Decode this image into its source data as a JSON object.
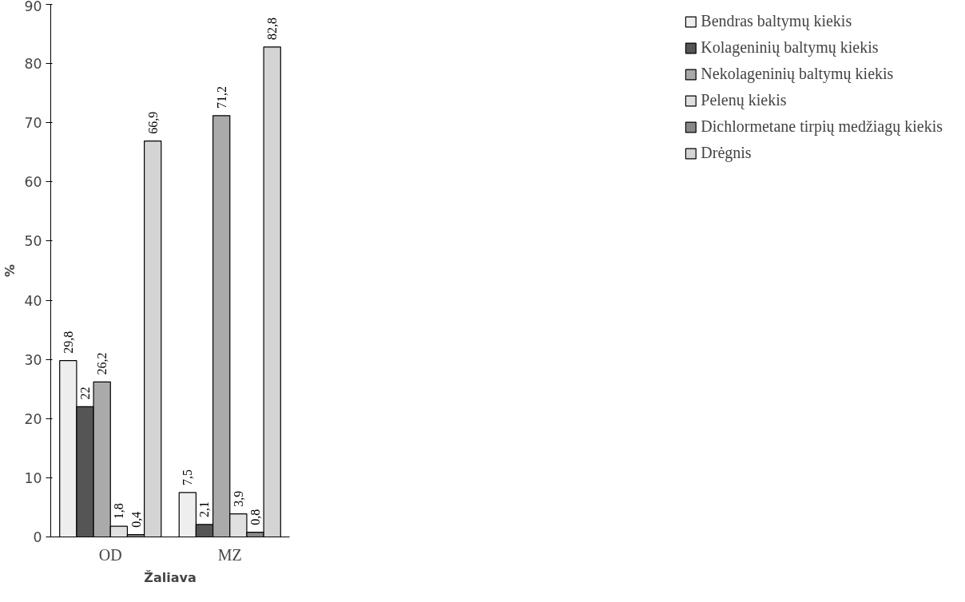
{
  "chart_data": {
    "type": "bar",
    "xlabel": "Žaliava",
    "ylabel": "%",
    "categories": [
      "OD",
      "MZ"
    ],
    "ylim": [
      0,
      90
    ],
    "yticks": [
      0,
      10,
      20,
      30,
      40,
      50,
      60,
      70,
      80,
      90
    ],
    "grid": false,
    "legend": "right",
    "series": [
      {
        "name": "Bendras baltymų kiekis",
        "color": "#eeeeee",
        "values": [
          29.8,
          7.5
        ],
        "value_labels": [
          "29,8",
          "7,5"
        ]
      },
      {
        "name": "Kolageninių baltymų kiekis",
        "color": "#555555",
        "values": [
          22,
          2.1
        ],
        "value_labels": [
          "22",
          "2,1"
        ]
      },
      {
        "name": "Nekolageninių baltymų kiekis",
        "color": "#aaaaaa",
        "values": [
          26.2,
          71.2
        ],
        "value_labels": [
          "26,2",
          "71,2"
        ]
      },
      {
        "name": "Pelenų kiekis",
        "color": "#e0e0e0",
        "values": [
          1.8,
          3.9
        ],
        "value_labels": [
          "1,8",
          "3,9"
        ]
      },
      {
        "name": "Dichlormetane tirpių medžiagų kiekis",
        "color": "#888888",
        "values": [
          0.4,
          0.8
        ],
        "value_labels": [
          "0,4",
          "0,8"
        ]
      },
      {
        "name": "Drėgnis",
        "color": "#d4d4d4",
        "values": [
          66.9,
          82.8
        ],
        "value_labels": [
          "66,9",
          "82,8"
        ]
      }
    ]
  }
}
